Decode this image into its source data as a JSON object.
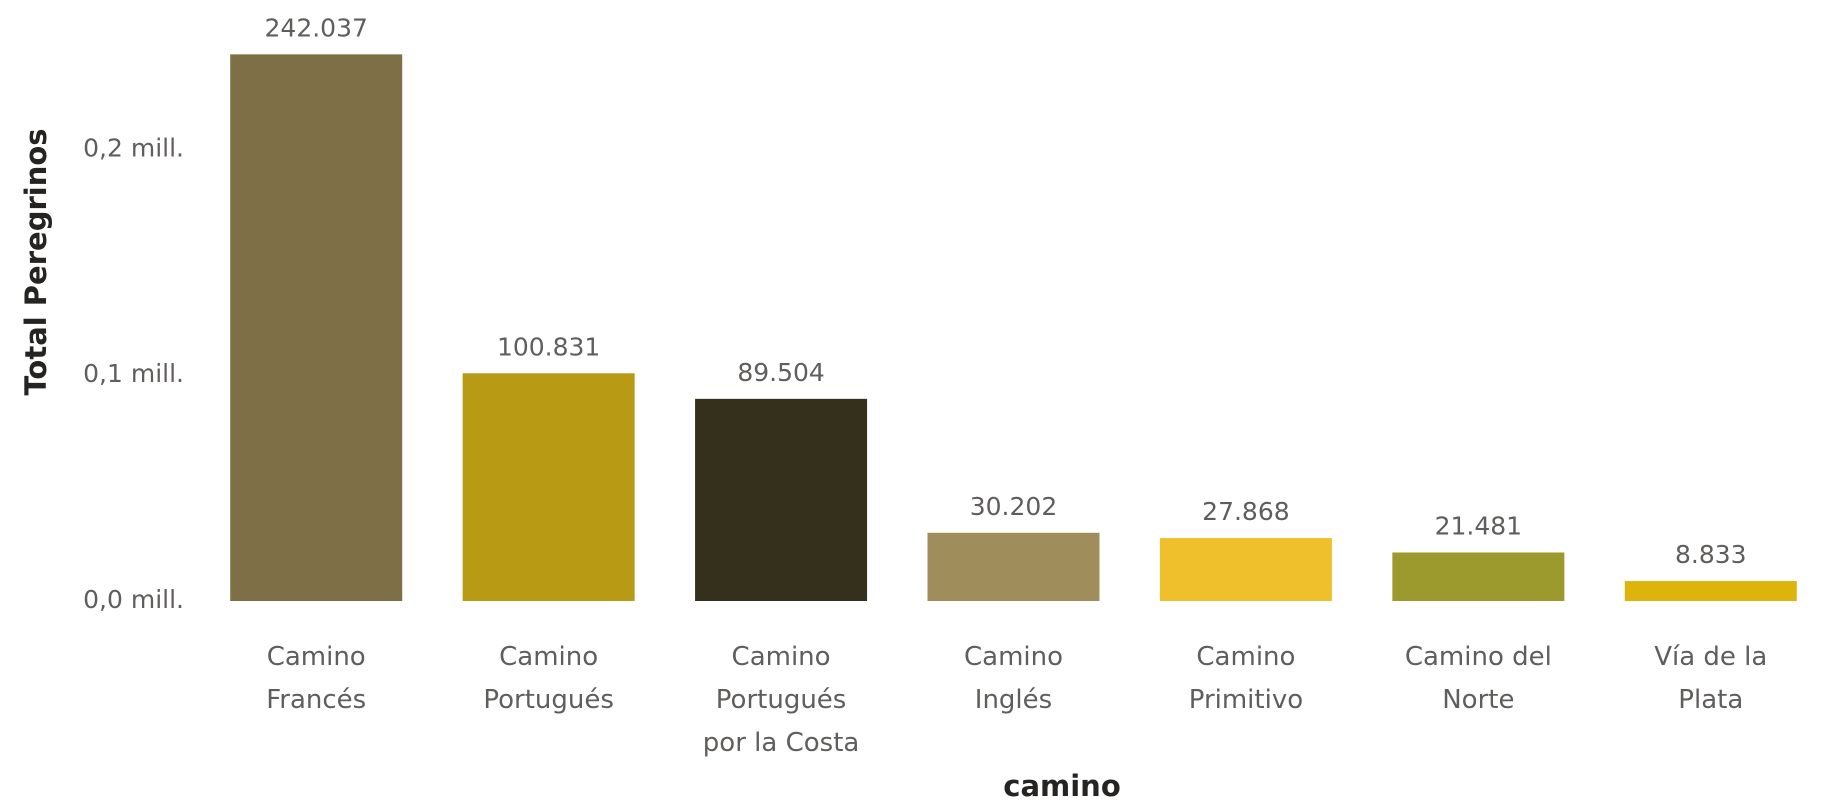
{
  "chart_data": {
    "type": "bar",
    "xlabel": "camino",
    "ylabel": "Total Peregrinos",
    "ylim": [
      0,
      0.2475
    ],
    "yticks": [
      0.0,
      0.1,
      0.2
    ],
    "ytick_labels": [
      "0,0 mill.",
      "0,1 mill.",
      "0,2 mill."
    ],
    "grid": false,
    "categories": [
      "Camino Francés",
      "Camino Portugués",
      "Camino Portugués por la Costa",
      "Camino Inglés",
      "Camino Primitivo",
      "Camino del Norte",
      "Vía de la Plata"
    ],
    "category_lines": [
      [
        "Camino",
        "Francés"
      ],
      [
        "Camino",
        "Portugués"
      ],
      [
        "Camino",
        "Portugués",
        "por la Costa"
      ],
      [
        "Camino",
        "Inglés"
      ],
      [
        "Camino",
        "Primitivo"
      ],
      [
        "Camino del",
        "Norte"
      ],
      [
        "Vía de la",
        "Plata"
      ]
    ],
    "values": [
      242037,
      100831,
      89504,
      30202,
      27868,
      21481,
      8833
    ],
    "value_labels": [
      "242.037",
      "100.831",
      "89.504",
      "30.202",
      "27.868",
      "21.481",
      "8.833"
    ],
    "colors": [
      "#7f6f47",
      "#b99a14",
      "#35301c",
      "#a08d5c",
      "#f0bf2c",
      "#9c9a2c",
      "#dcb40c"
    ]
  }
}
